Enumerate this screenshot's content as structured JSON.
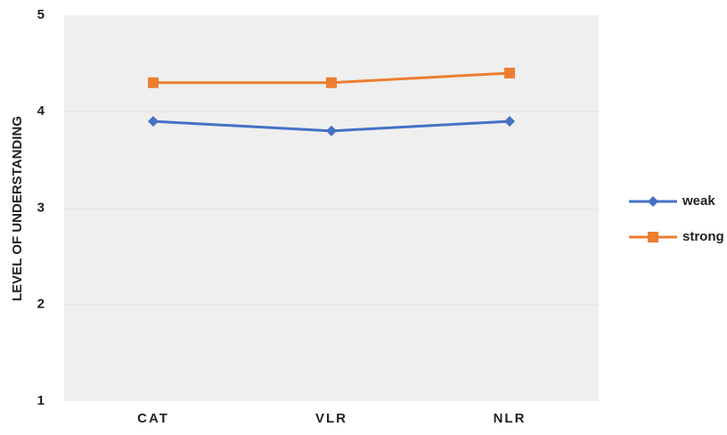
{
  "chart_data": {
    "type": "line",
    "y_label": "LEVEL OF UNDERSTANDING",
    "categories": [
      "CAT",
      "VLR",
      "NLR"
    ],
    "series": [
      {
        "name": "weak",
        "color": "#4472c4",
        "marker": "diamond",
        "values": [
          3.9,
          3.8,
          3.9
        ]
      },
      {
        "name": "strong",
        "color": "#ed7d31",
        "marker": "square",
        "values": [
          4.3,
          4.3,
          4.4
        ]
      }
    ],
    "ylim": [
      1,
      5
    ],
    "yticks": [
      1,
      2,
      3,
      4,
      5
    ],
    "grid": true,
    "legend": "right"
  }
}
